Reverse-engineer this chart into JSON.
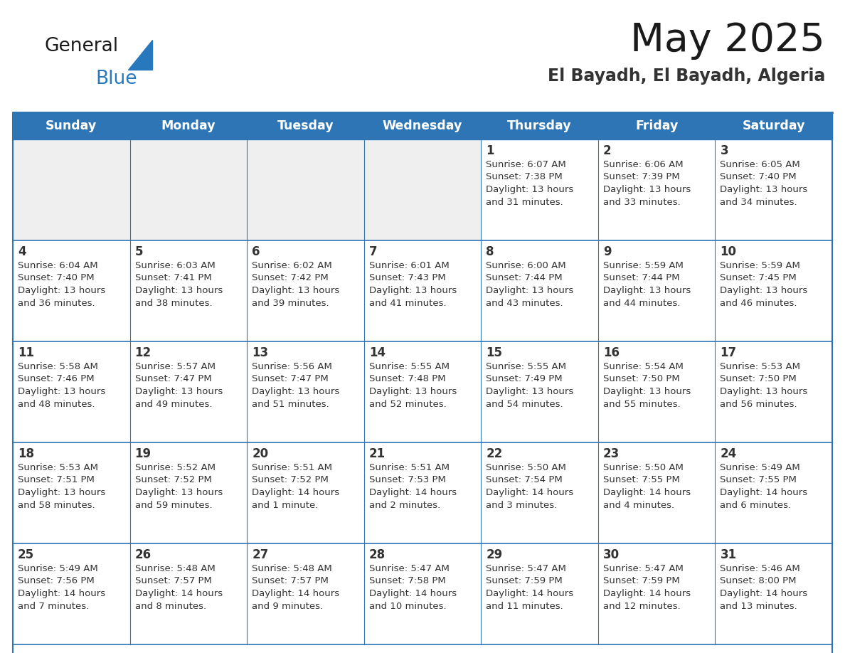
{
  "title": "May 2025",
  "subtitle": "El Bayadh, El Bayadh, Algeria",
  "days_of_week": [
    "Sunday",
    "Monday",
    "Tuesday",
    "Wednesday",
    "Thursday",
    "Friday",
    "Saturday"
  ],
  "header_bg": "#2E75B6",
  "header_text": "#FFFFFF",
  "cell_bg_light": "#EFEFEF",
  "cell_bg_white": "#FFFFFF",
  "cell_text": "#333333",
  "border_color": "#2E75B6",
  "row_border_color": "#2E75B6",
  "title_color": "#1a1a1a",
  "subtitle_color": "#333333",
  "logo_general_color": "#1a1a1a",
  "logo_blue_color": "#2878BE",
  "weeks": [
    {
      "days": [
        {
          "day": null,
          "sunrise": null,
          "sunset": null,
          "daylight": null
        },
        {
          "day": null,
          "sunrise": null,
          "sunset": null,
          "daylight": null
        },
        {
          "day": null,
          "sunrise": null,
          "sunset": null,
          "daylight": null
        },
        {
          "day": null,
          "sunrise": null,
          "sunset": null,
          "daylight": null
        },
        {
          "day": 1,
          "sunrise": "6:07 AM",
          "sunset": "7:38 PM",
          "daylight": "13 hours and 31 minutes."
        },
        {
          "day": 2,
          "sunrise": "6:06 AM",
          "sunset": "7:39 PM",
          "daylight": "13 hours and 33 minutes."
        },
        {
          "day": 3,
          "sunrise": "6:05 AM",
          "sunset": "7:40 PM",
          "daylight": "13 hours and 34 minutes."
        }
      ]
    },
    {
      "days": [
        {
          "day": 4,
          "sunrise": "6:04 AM",
          "sunset": "7:40 PM",
          "daylight": "13 hours and 36 minutes."
        },
        {
          "day": 5,
          "sunrise": "6:03 AM",
          "sunset": "7:41 PM",
          "daylight": "13 hours and 38 minutes."
        },
        {
          "day": 6,
          "sunrise": "6:02 AM",
          "sunset": "7:42 PM",
          "daylight": "13 hours and 39 minutes."
        },
        {
          "day": 7,
          "sunrise": "6:01 AM",
          "sunset": "7:43 PM",
          "daylight": "13 hours and 41 minutes."
        },
        {
          "day": 8,
          "sunrise": "6:00 AM",
          "sunset": "7:44 PM",
          "daylight": "13 hours and 43 minutes."
        },
        {
          "day": 9,
          "sunrise": "5:59 AM",
          "sunset": "7:44 PM",
          "daylight": "13 hours and 44 minutes."
        },
        {
          "day": 10,
          "sunrise": "5:59 AM",
          "sunset": "7:45 PM",
          "daylight": "13 hours and 46 minutes."
        }
      ]
    },
    {
      "days": [
        {
          "day": 11,
          "sunrise": "5:58 AM",
          "sunset": "7:46 PM",
          "daylight": "13 hours and 48 minutes."
        },
        {
          "day": 12,
          "sunrise": "5:57 AM",
          "sunset": "7:47 PM",
          "daylight": "13 hours and 49 minutes."
        },
        {
          "day": 13,
          "sunrise": "5:56 AM",
          "sunset": "7:47 PM",
          "daylight": "13 hours and 51 minutes."
        },
        {
          "day": 14,
          "sunrise": "5:55 AM",
          "sunset": "7:48 PM",
          "daylight": "13 hours and 52 minutes."
        },
        {
          "day": 15,
          "sunrise": "5:55 AM",
          "sunset": "7:49 PM",
          "daylight": "13 hours and 54 minutes."
        },
        {
          "day": 16,
          "sunrise": "5:54 AM",
          "sunset": "7:50 PM",
          "daylight": "13 hours and 55 minutes."
        },
        {
          "day": 17,
          "sunrise": "5:53 AM",
          "sunset": "7:50 PM",
          "daylight": "13 hours and 56 minutes."
        }
      ]
    },
    {
      "days": [
        {
          "day": 18,
          "sunrise": "5:53 AM",
          "sunset": "7:51 PM",
          "daylight": "13 hours and 58 minutes."
        },
        {
          "day": 19,
          "sunrise": "5:52 AM",
          "sunset": "7:52 PM",
          "daylight": "13 hours and 59 minutes."
        },
        {
          "day": 20,
          "sunrise": "5:51 AM",
          "sunset": "7:52 PM",
          "daylight": "14 hours and 1 minute."
        },
        {
          "day": 21,
          "sunrise": "5:51 AM",
          "sunset": "7:53 PM",
          "daylight": "14 hours and 2 minutes."
        },
        {
          "day": 22,
          "sunrise": "5:50 AM",
          "sunset": "7:54 PM",
          "daylight": "14 hours and 3 minutes."
        },
        {
          "day": 23,
          "sunrise": "5:50 AM",
          "sunset": "7:55 PM",
          "daylight": "14 hours and 4 minutes."
        },
        {
          "day": 24,
          "sunrise": "5:49 AM",
          "sunset": "7:55 PM",
          "daylight": "14 hours and 6 minutes."
        }
      ]
    },
    {
      "days": [
        {
          "day": 25,
          "sunrise": "5:49 AM",
          "sunset": "7:56 PM",
          "daylight": "14 hours and 7 minutes."
        },
        {
          "day": 26,
          "sunrise": "5:48 AM",
          "sunset": "7:57 PM",
          "daylight": "14 hours and 8 minutes."
        },
        {
          "day": 27,
          "sunrise": "5:48 AM",
          "sunset": "7:57 PM",
          "daylight": "14 hours and 9 minutes."
        },
        {
          "day": 28,
          "sunrise": "5:47 AM",
          "sunset": "7:58 PM",
          "daylight": "14 hours and 10 minutes."
        },
        {
          "day": 29,
          "sunrise": "5:47 AM",
          "sunset": "7:59 PM",
          "daylight": "14 hours and 11 minutes."
        },
        {
          "day": 30,
          "sunrise": "5:47 AM",
          "sunset": "7:59 PM",
          "daylight": "14 hours and 12 minutes."
        },
        {
          "day": 31,
          "sunrise": "5:46 AM",
          "sunset": "8:00 PM",
          "daylight": "14 hours and 13 minutes."
        }
      ]
    }
  ]
}
